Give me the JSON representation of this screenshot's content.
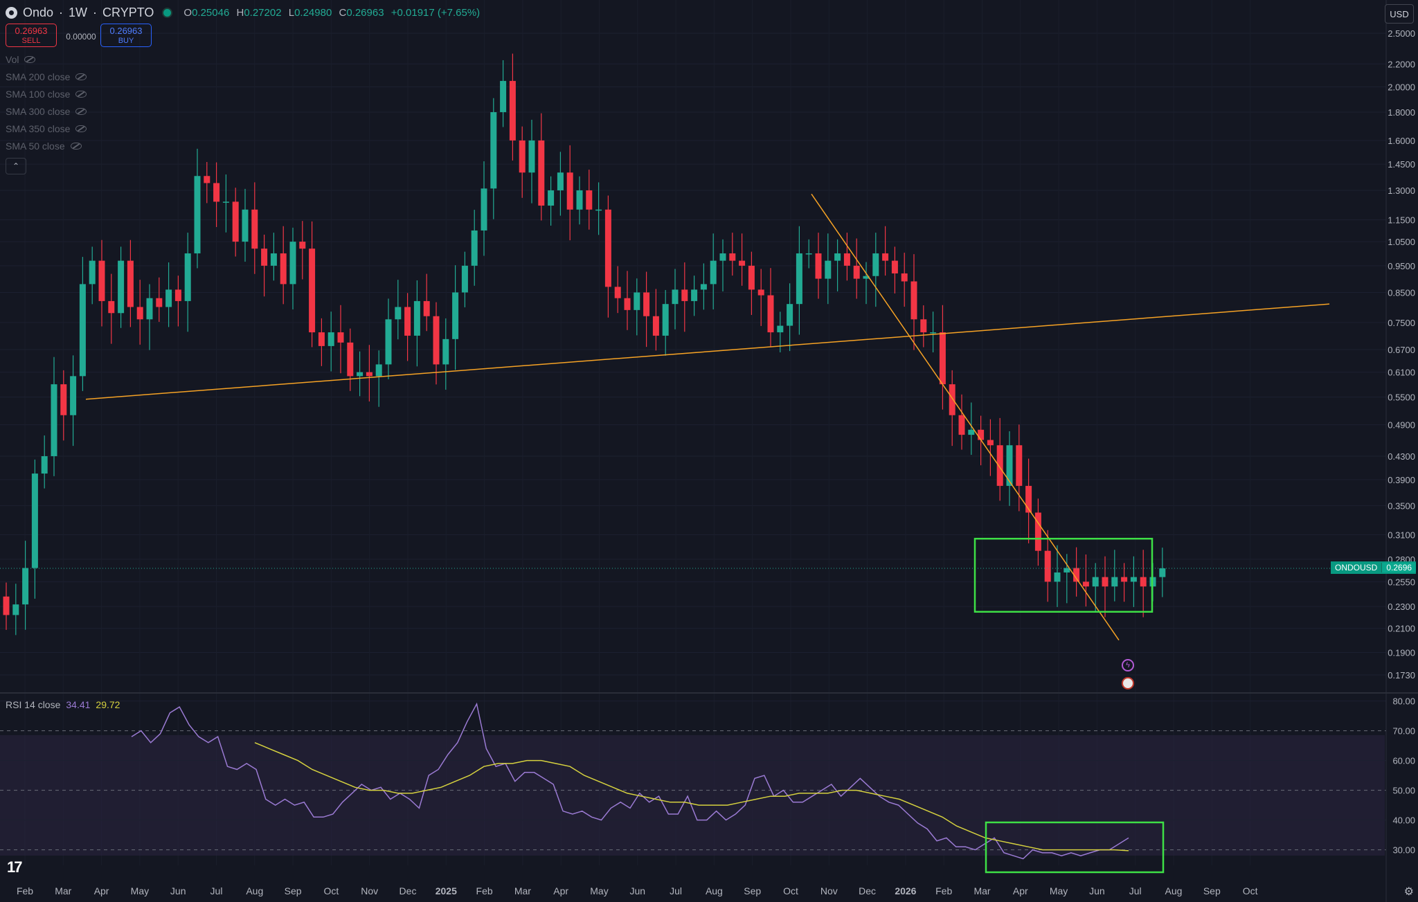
{
  "header": {
    "symbol": "Ondo",
    "interval": "1W",
    "exchange": "CRYPTO",
    "ohlc": {
      "open_label": "O",
      "open": "0.25046",
      "high_label": "H",
      "high": "0.27202",
      "low_label": "L",
      "low": "0.24980",
      "close_label": "C",
      "close": "0.26963",
      "change": "+0.01917 (+7.65%)"
    }
  },
  "trade": {
    "sell_price": "0.26963",
    "sell_label": "SELL",
    "spread": "0.00000",
    "buy_price": "0.26963",
    "buy_label": "BUY"
  },
  "indicators": [
    {
      "label": "Vol"
    },
    {
      "label": "SMA 200 close"
    },
    {
      "label": "SMA 100 close"
    },
    {
      "label": "SMA 300 close"
    },
    {
      "label": "SMA 350 close"
    },
    {
      "label": "SMA 50 close"
    }
  ],
  "currency_button": "USD",
  "last_price_tag": {
    "symbol": "ONDOUSD",
    "price": "0.2696"
  },
  "rsi_legend": {
    "label": "RSI 14 close",
    "rsi": "34.41",
    "ma": "29.72"
  },
  "tv_logo": "17",
  "colors": {
    "up": "#22ab94",
    "down": "#f23645",
    "background": "#141722",
    "trendline": "#f7a325",
    "box": "#3ee046",
    "rsi": "#9b7bd4",
    "rsi_ma": "#d6d23f"
  },
  "chart_data": [
    {
      "type": "candlestick",
      "scale": "log",
      "y_ticks": [
        "2.5000",
        "2.2000",
        "2.0000",
        "1.8000",
        "1.6000",
        "1.4500",
        "1.3000",
        "1.1500",
        "1.0500",
        "0.9500",
        "0.8500",
        "0.7500",
        "0.6700",
        "0.6100",
        "0.5500",
        "0.4900",
        "0.4300",
        "0.3900",
        "0.3500",
        "0.3100",
        "0.2800",
        "0.2550",
        "0.2300",
        "0.2100",
        "0.1900",
        "0.1730"
      ],
      "x_labels": [
        "Feb",
        "Mar",
        "Apr",
        "May",
        "Jun",
        "Jul",
        "Aug",
        "Sep",
        "Oct",
        "Nov",
        "Dec",
        "2025",
        "Feb",
        "Mar",
        "Apr",
        "May",
        "Jun",
        "Jul",
        "Aug",
        "Sep",
        "Oct",
        "Nov",
        "Dec",
        "2026",
        "Feb",
        "Mar",
        "Apr",
        "May",
        "Jun",
        "Jul",
        "Aug",
        "Sep",
        "Oct"
      ],
      "closes": [
        0.222,
        0.232,
        0.27,
        0.4,
        0.43,
        0.58,
        0.51,
        0.6,
        0.88,
        0.97,
        0.82,
        0.78,
        0.97,
        0.8,
        0.76,
        0.83,
        0.8,
        0.86,
        0.82,
        1.0,
        1.38,
        1.34,
        1.24,
        1.24,
        1.05,
        1.2,
        1.02,
        0.95,
        1.0,
        0.88,
        1.05,
        1.02,
        0.72,
        0.68,
        0.72,
        0.69,
        0.6,
        0.61,
        0.6,
        0.63,
        0.76,
        0.8,
        0.71,
        0.82,
        0.77,
        0.63,
        0.7,
        0.85,
        0.95,
        1.1,
        1.31,
        1.8,
        2.05,
        1.6,
        1.4,
        1.6,
        1.22,
        1.3,
        1.4,
        1.2,
        1.3,
        1.2,
        1.2,
        0.87,
        0.83,
        0.79,
        0.85,
        0.77,
        0.71,
        0.81,
        0.86,
        0.82,
        0.86,
        0.88,
        0.97,
        1.0,
        0.97,
        0.95,
        0.86,
        0.84,
        0.72,
        0.74,
        0.81,
        1.0,
        1.0,
        0.9,
        0.97,
        1.0,
        0.95,
        0.9,
        0.91,
        1.0,
        0.97,
        0.92,
        0.89,
        0.76,
        0.72,
        0.72,
        0.58,
        0.51,
        0.47,
        0.48,
        0.46,
        0.45,
        0.38,
        0.45,
        0.38,
        0.34,
        0.29,
        0.255,
        0.265,
        0.27,
        0.255,
        0.25,
        0.26,
        0.25,
        0.26,
        0.255,
        0.26,
        0.25,
        0.26,
        0.2696
      ],
      "lines": [
        {
          "name": "",
          "points": [
            [
              0,
              0.545
            ],
            [
              0,
              0.81
            ]
          ]
        },
        {
          "name": "",
          "points": [
            [
              0,
              1.28
            ],
            [
              0,
              0.2
            ]
          ]
        }
      ],
      "last_price": 0.2696
    },
    {
      "type": "line",
      "title": "RSI 14 close",
      "y_ticks": [
        "80.00",
        "70.00",
        "60.00",
        "50.00",
        "40.00",
        "30.00"
      ],
      "ylim": [
        22,
        82
      ],
      "series": [
        {
          "name": "RSI",
          "values": [
            68,
            70,
            66,
            69,
            76,
            78,
            72,
            68,
            66,
            68,
            58,
            57,
            59,
            57,
            47,
            45,
            47,
            45,
            46,
            41,
            41,
            42,
            46,
            49,
            52,
            50,
            51,
            47,
            49,
            47,
            44,
            55,
            57,
            62,
            66,
            73,
            79,
            64,
            58,
            59,
            53,
            56,
            56,
            54,
            52,
            43,
            42,
            43,
            41,
            40,
            44,
            46,
            44,
            49,
            46,
            48,
            42,
            42,
            48,
            40,
            40,
            43,
            40,
            42,
            45,
            54,
            55,
            48,
            50,
            46,
            46,
            48,
            50,
            52,
            48,
            51,
            54,
            51,
            48,
            46,
            45,
            42,
            39,
            37,
            33,
            34,
            31,
            31,
            30,
            32,
            34,
            29,
            28,
            27,
            30,
            29,
            29,
            28,
            29,
            28,
            29,
            30,
            30,
            32,
            34
          ]
        },
        {
          "name": "MA",
          "values": [
            66,
            64,
            62,
            60,
            57,
            55,
            53,
            51,
            50,
            50,
            49,
            49,
            50,
            51,
            53,
            55,
            58,
            59,
            59,
            60,
            60,
            59,
            58,
            55,
            53,
            51,
            49,
            48,
            47,
            46,
            46,
            45,
            45,
            45,
            46,
            47,
            48,
            48,
            49,
            49,
            49,
            50,
            50,
            49,
            48,
            47,
            45,
            43,
            41,
            38,
            36,
            34,
            33,
            32,
            31,
            30,
            30,
            30,
            30,
            30,
            30,
            29.7
          ]
        }
      ]
    }
  ]
}
